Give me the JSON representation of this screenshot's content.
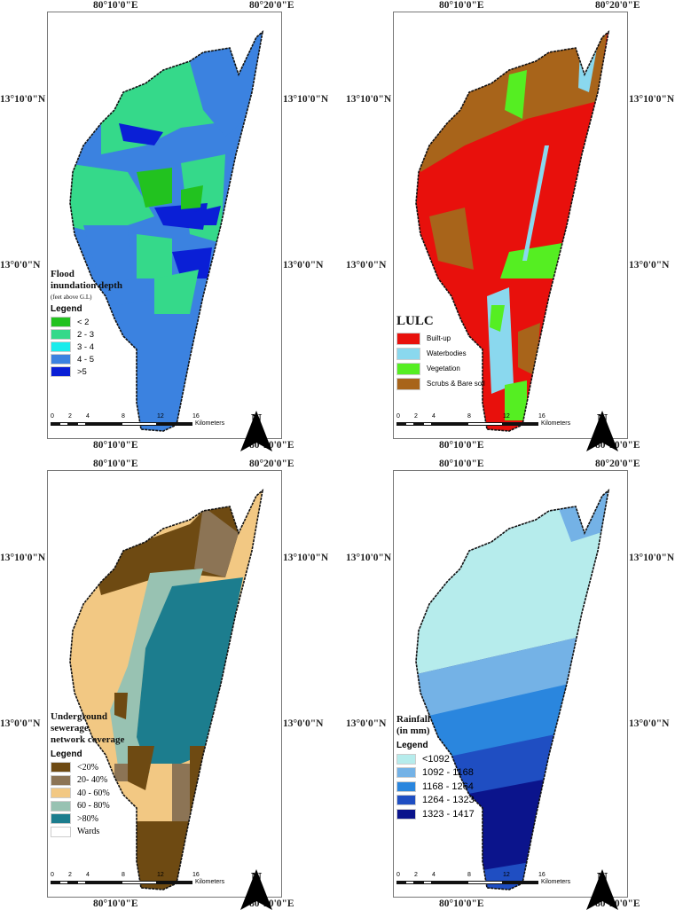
{
  "coords": {
    "lon1": "80°10'0\"E",
    "lon2": "80°20'0\"E",
    "lat1": "13°10'0\"N",
    "lat2": "13°0'0\"N"
  },
  "scale": {
    "ticks": [
      "0",
      "2",
      "4",
      "8",
      "12",
      "16"
    ],
    "unit": "Kilometers"
  },
  "north_label": "N",
  "panels": [
    {
      "id": "flood",
      "title": [
        "Flood",
        "inundation depth"
      ],
      "subtitle": "(feet above G.L)",
      "legend_title": "Legend",
      "items": [
        {
          "label": "< 2",
          "color": "#22c21f"
        },
        {
          "label": "2 - 3",
          "color": "#35d98a"
        },
        {
          "label": "3 - 4",
          "color": "#19ecec"
        },
        {
          "label": "4 - 5",
          "color": "#3b82e0"
        },
        {
          "label": ">5",
          "color": "#0a1fd6"
        }
      ]
    },
    {
      "id": "lulc",
      "title": [
        "LULC"
      ],
      "subtitle": "",
      "legend_title": "",
      "items": [
        {
          "label": "Built-up",
          "color": "#e8100c"
        },
        {
          "label": "Waterbodies",
          "color": "#8ad8ee"
        },
        {
          "label": "Vegetation",
          "color": "#55ee22"
        },
        {
          "label": "Scrubs & Bare soil",
          "color": "#a8641a"
        }
      ]
    },
    {
      "id": "sew",
      "title": [
        "Underground",
        "sewerage",
        "network coverage"
      ],
      "subtitle": "",
      "legend_title": "Legend",
      "items": [
        {
          "label": "<20%",
          "color": "#6e4a12"
        },
        {
          "label": "20- 40%",
          "color": "#8c7455"
        },
        {
          "label": "40 - 60%",
          "color": "#f2c883"
        },
        {
          "label": "60 - 80%",
          "color": "#98c2b2"
        },
        {
          "label": ">80%",
          "color": "#1c7d8e"
        },
        {
          "label": "Wards",
          "color": "#ffffff"
        }
      ]
    },
    {
      "id": "rain",
      "title": [
        "Rainfall",
        "(in mm)"
      ],
      "subtitle": "",
      "legend_title": "Legend",
      "items": [
        {
          "label": "<1092",
          "color": "#b6ecec"
        },
        {
          "label": "1092 - 1168",
          "color": "#74b2e6"
        },
        {
          "label": "1168 - 1264",
          "color": "#2a86de"
        },
        {
          "label": "1264 - 1323",
          "color": "#1f4ec2"
        },
        {
          "label": "1323 - 1417",
          "color": "#0b148c"
        }
      ]
    }
  ]
}
